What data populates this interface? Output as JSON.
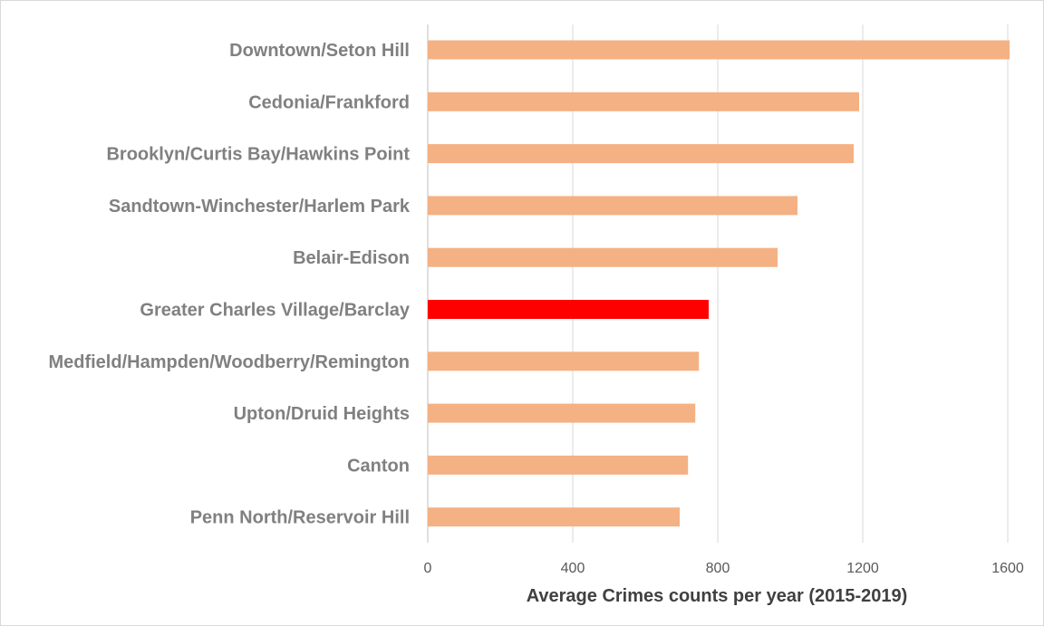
{
  "chart_data": {
    "type": "bar",
    "orientation": "horizontal",
    "categories": [
      "Downtown/Seton Hill",
      "Cedonia/Frankford",
      "Brooklyn/Curtis Bay/Hawkins Point",
      "Sandtown-Winchester/Harlem Park",
      "Belair-Edison",
      "Greater Charles Village/Barclay",
      "Medfield/Hampden/Woodberry/Remington",
      "Upton/Druid Heights",
      "Canton",
      "Penn North/Reservoir Hill"
    ],
    "values": [
      1605,
      1190,
      1175,
      1020,
      965,
      775,
      748,
      738,
      718,
      695
    ],
    "highlight_index": 5,
    "title": "",
    "xlabel": "Average Crimes counts per year (2015-2019)",
    "ylabel": "",
    "xlim": [
      0,
      1700
    ],
    "xticks": [
      0,
      400,
      800,
      1200,
      1600
    ],
    "grid": true,
    "colors": {
      "bar": "#F4B183",
      "highlight": "#FF0000",
      "grid": "#D9D9D9",
      "category_text": "#808080",
      "tick_text": "#595959",
      "title_text": "#404040"
    }
  }
}
